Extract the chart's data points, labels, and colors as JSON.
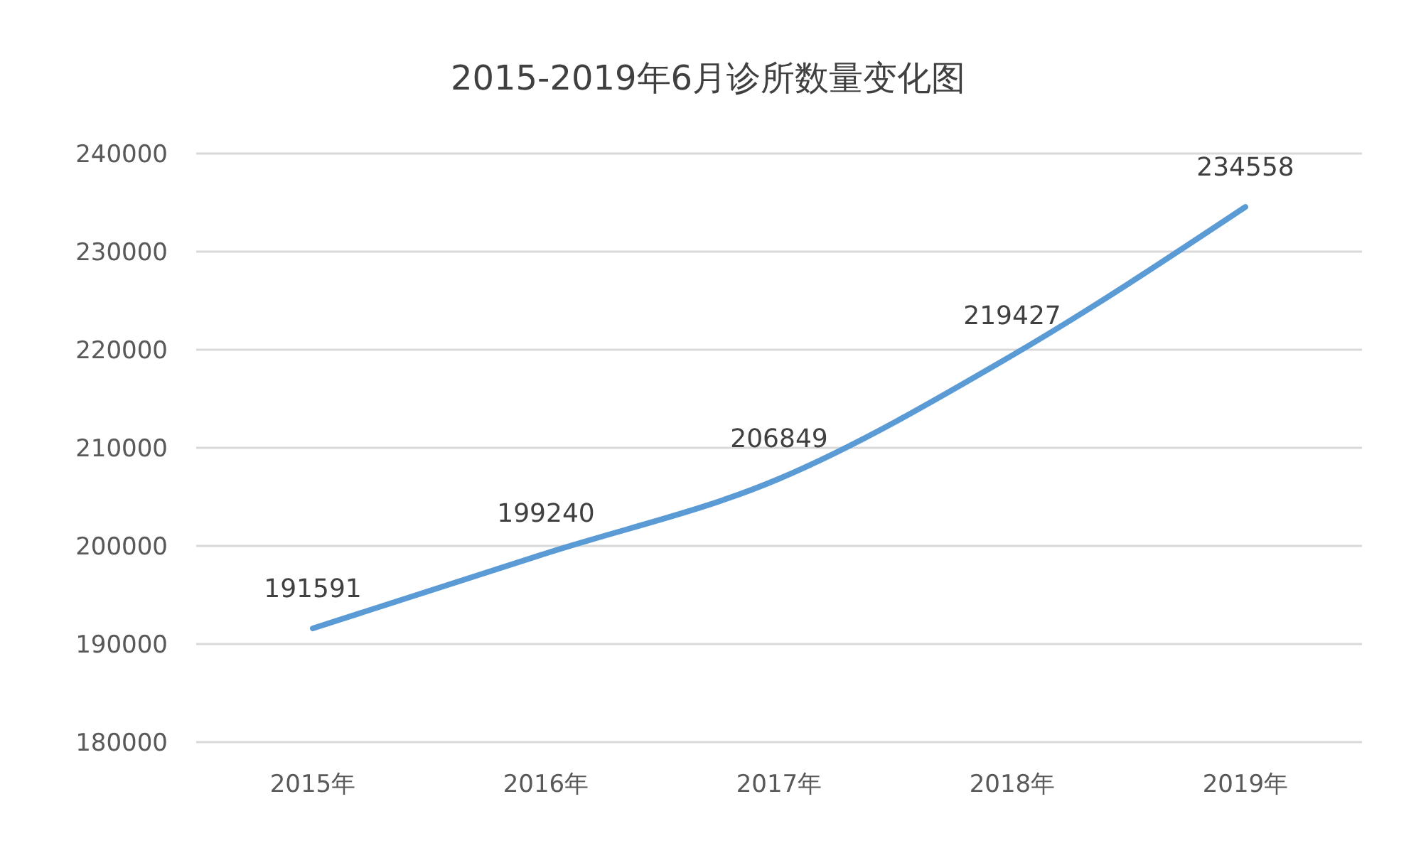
{
  "chart_data": {
    "type": "line",
    "title": "2015-2019年6月诊所数量变化图",
    "categories": [
      "2015年",
      "2016年",
      "2017年",
      "2018年",
      "2019年"
    ],
    "series": [
      {
        "color": "#5b9bd5",
        "values": [
          191591,
          199240,
          206849,
          219427,
          234558
        ]
      }
    ],
    "ylim": [
      180000,
      240000
    ],
    "yticks": [
      180000,
      190000,
      200000,
      210000,
      220000,
      230000,
      240000
    ],
    "grid": "y",
    "data_labels": true
  }
}
